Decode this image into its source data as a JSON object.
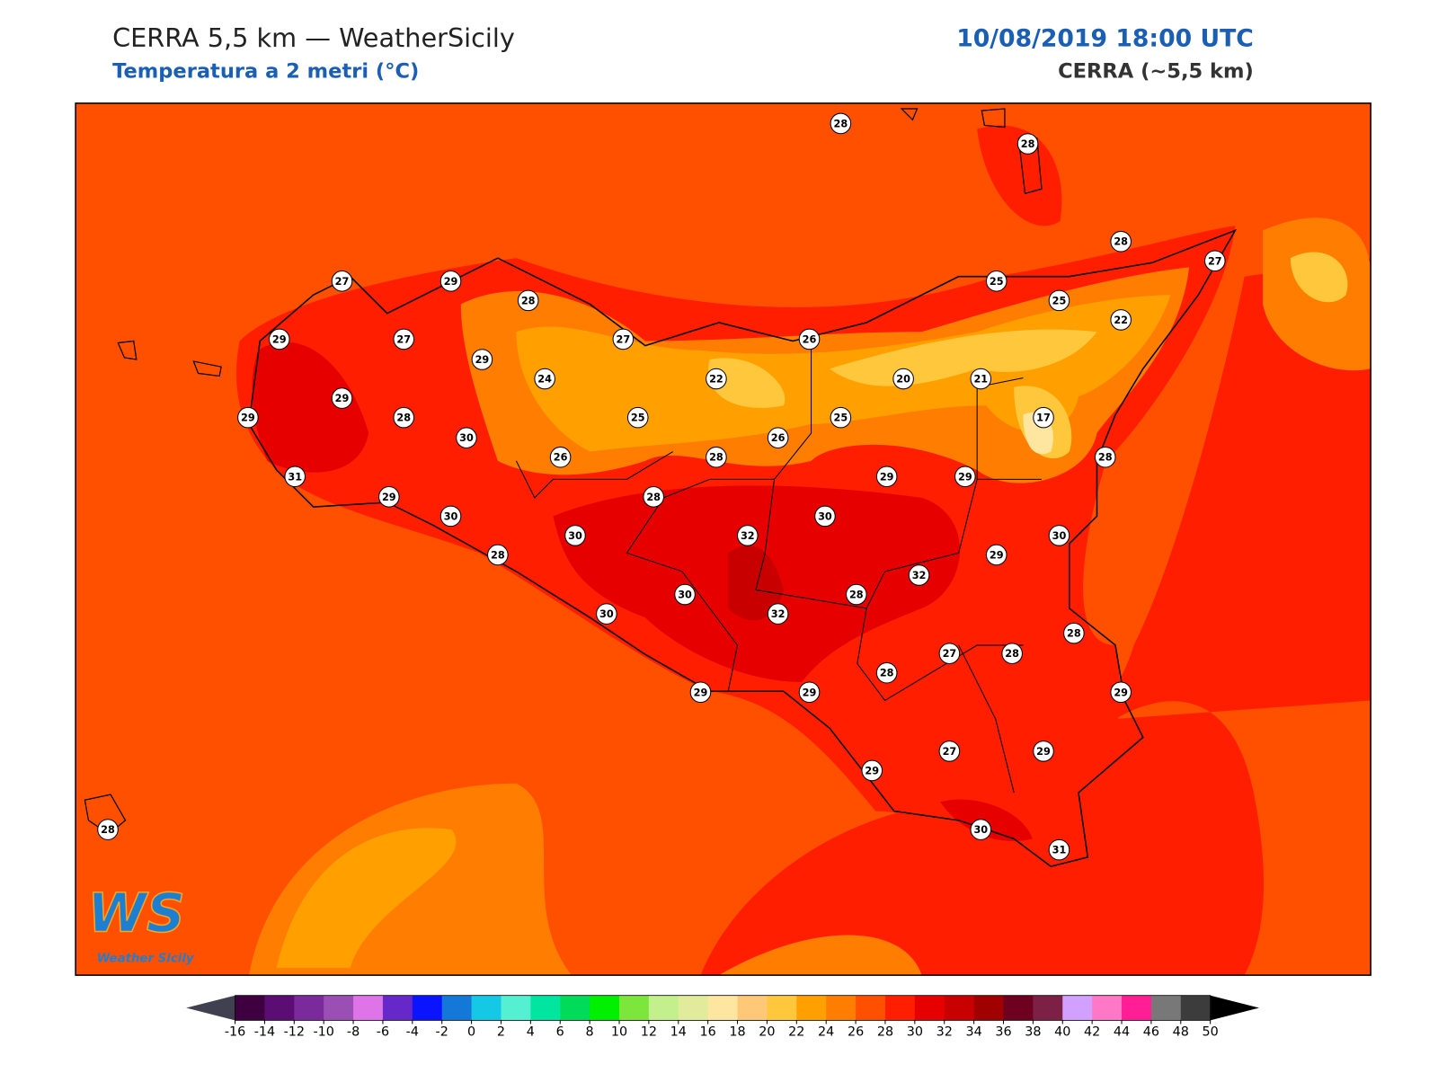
{
  "header": {
    "title": "CERRA 5,5 km — WeatherSicily",
    "subtitle": "Temperatura a 2 metri (°C)",
    "datetime": "10/08/2019 18:00 UTC",
    "model": "CERRA (~5,5 km)"
  },
  "stations": [
    28,
    28,
    28,
    27,
    27,
    29,
    28,
    25,
    25,
    22,
    29,
    27,
    27,
    26,
    29,
    24,
    22,
    20,
    21,
    29,
    29,
    28,
    25,
    25,
    17,
    30,
    26,
    26,
    28,
    28,
    31,
    29,
    29,
    29,
    28,
    30,
    30,
    30,
    32,
    30,
    28,
    29,
    32,
    30,
    28,
    30,
    32,
    28,
    27,
    28,
    28,
    29,
    29,
    29,
    27,
    29,
    29,
    28,
    30,
    31
  ],
  "colorbar": {
    "ticks": [
      -16,
      -14,
      -12,
      -10,
      -8,
      -6,
      -4,
      -2,
      0,
      2,
      4,
      6,
      8,
      10,
      12,
      14,
      16,
      18,
      20,
      22,
      24,
      26,
      28,
      30,
      32,
      34,
      36,
      38,
      40,
      42,
      44,
      46,
      48,
      50
    ],
    "colors": [
      "#3f0040",
      "#5c0d73",
      "#7b2a9c",
      "#9b4fb5",
      "#df73e8",
      "#6628c8",
      "#0a14ff",
      "#1478d8",
      "#14c8e6",
      "#55f0d2",
      "#00e6a0",
      "#00dc5a",
      "#00f000",
      "#7de63c",
      "#c3f08c",
      "#e1eb9b",
      "#ffe6a0",
      "#ffc878",
      "#ffc83c",
      "#ffa000",
      "#ff7d00",
      "#ff5000",
      "#ff1e00",
      "#e60000",
      "#c80000",
      "#a00000",
      "#6e0020",
      "#7d2046",
      "#d2a0ff",
      "#ff78c8",
      "#ff1e96",
      "#787878",
      "#3c3c3c"
    ],
    "under_color": "#404050",
    "over_color": "#000000"
  },
  "logo": {
    "mark": "WS",
    "text": "Weather Sicily"
  }
}
